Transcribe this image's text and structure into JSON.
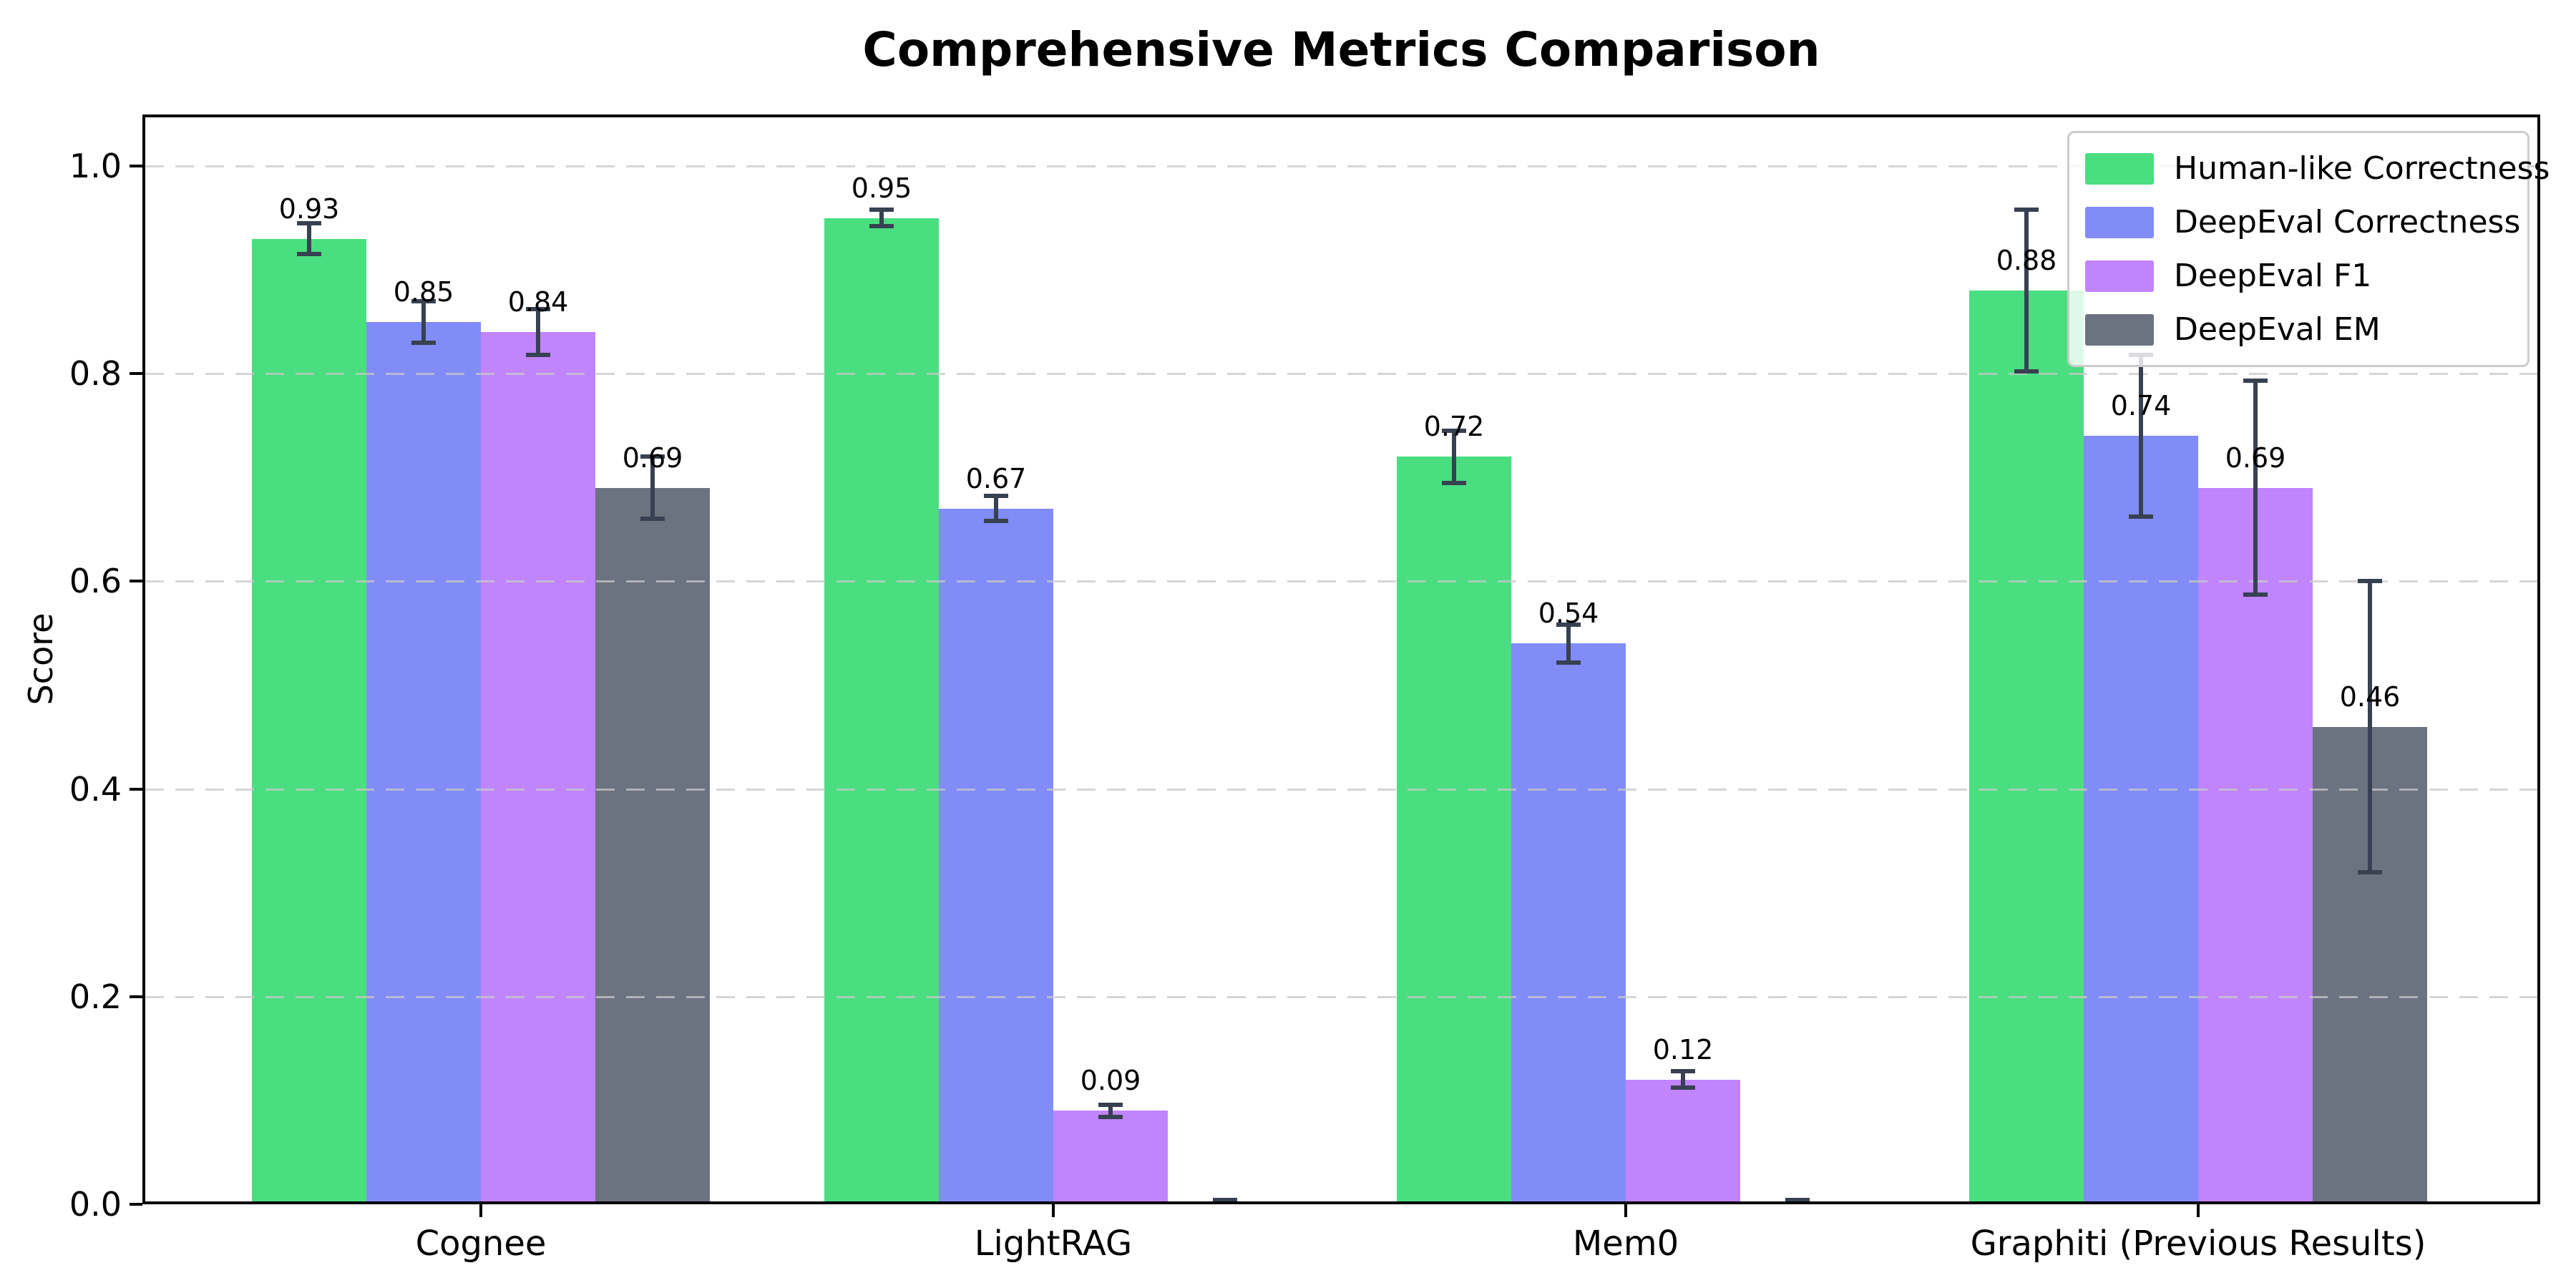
{
  "chart_data": {
    "type": "bar",
    "title": "Comprehensive Metrics Comparison",
    "ylabel": "Score",
    "xlabel": "",
    "ylim": [
      0,
      1.05
    ],
    "grid": "horizontal-dashed",
    "legend_position": "upper-right",
    "categories": [
      "Cognee",
      "LightRAG",
      "Mem0",
      "Graphiti (Previous Results)"
    ],
    "yticks": [
      {
        "value": 0.0,
        "label": "0.0"
      },
      {
        "value": 0.2,
        "label": "0.2"
      },
      {
        "value": 0.4,
        "label": "0.4"
      },
      {
        "value": 0.6,
        "label": "0.6"
      },
      {
        "value": 0.8,
        "label": "0.8"
      },
      {
        "value": 1.0,
        "label": "1.0"
      }
    ],
    "series": [
      {
        "name": "Human-like Correctness",
        "color": "#4ade80",
        "values": [
          0.93,
          0.95,
          0.72,
          0.88
        ],
        "errors": [
          0.015,
          0.008,
          0.025,
          0.078
        ],
        "labels": [
          "0.93",
          "0.95",
          "0.72",
          "0.88"
        ]
      },
      {
        "name": "DeepEval Correctness",
        "color": "#818cf8",
        "values": [
          0.85,
          0.67,
          0.54,
          0.74
        ],
        "errors": [
          0.02,
          0.012,
          0.018,
          0.078
        ],
        "labels": [
          "0.85",
          "0.67",
          "0.54",
          "0.74"
        ]
      },
      {
        "name": "DeepEval F1",
        "color": "#c084fc",
        "values": [
          0.84,
          0.09,
          0.12,
          0.69
        ],
        "errors": [
          0.022,
          0.006,
          0.008,
          0.103
        ],
        "labels": [
          "0.84",
          "0.09",
          "0.12",
          "0.69"
        ]
      },
      {
        "name": "DeepEval EM",
        "color": "#6b7280",
        "values": [
          0.69,
          0.0,
          0.0,
          0.46
        ],
        "errors": [
          0.03,
          0.004,
          0.004,
          0.14
        ],
        "labels": [
          "0.69",
          "",
          "",
          "0.46"
        ]
      }
    ],
    "style": {
      "error_bar_color": "#374151",
      "grid_color": "#c8c8c8",
      "axis_color": "#000000",
      "legend_border_color": "#cccccc",
      "background": "#ffffff"
    }
  }
}
